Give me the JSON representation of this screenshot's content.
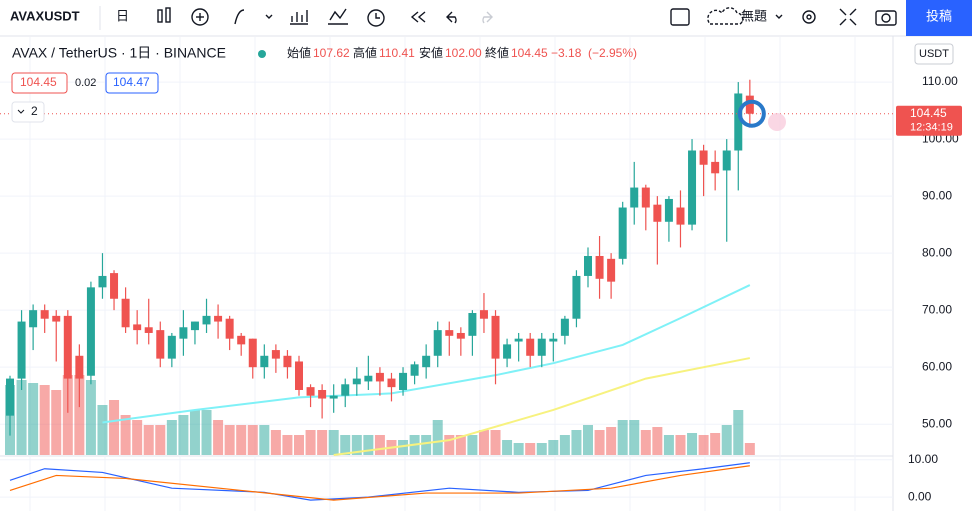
{
  "toolbar": {
    "symbol": "AVAXUSDT",
    "interval": "日",
    "layout_name": "無題",
    "publish": "投稿"
  },
  "chart_data": {
    "type": "candlestick",
    "title": "AVAX / TetherUS · 1日 · BINANCE",
    "legend": [
      {
        "name": "始値",
        "value": 107.62
      },
      {
        "name": "高値",
        "value": 110.41
      },
      {
        "name": "安値",
        "value": {
          "value": 102,
          "label": "102.00"
        }
      },
      {
        "name": "終値",
        "value": 104.45
      }
    ],
    "change": -3.18,
    "change_label": "−3.18",
    "change_pct": -2.95,
    "change_pct_label": "(−2.95%)",
    "currency": "USDT",
    "bid": 104.45,
    "spread": 0.02,
    "ask": 104.47,
    "indicator_count": 2,
    "last_price": 104.45,
    "countdown": "12:34:19",
    "up_color": "#26a69a",
    "down_color": "#ef5350",
    "ylim": [
      44.6,
      116.5
    ],
    "yticks": [
      {
        "value": 50,
        "label": "50.00"
      },
      {
        "value": 60,
        "label": "60.00"
      },
      {
        "value": 70,
        "label": "70.00"
      },
      {
        "value": 80,
        "label": "80.00"
      },
      {
        "value": 90,
        "label": "90.00"
      },
      {
        "value": 100,
        "label": "100.00"
      },
      {
        "value": 110,
        "label": "110.00"
      }
    ],
    "open": [
      51.5,
      58,
      67,
      70,
      69,
      69,
      62,
      58.5,
      74,
      76.5,
      72,
      67.5,
      67,
      66.5,
      61.5,
      65,
      66.5,
      67.5,
      69,
      68.5,
      65.5,
      65,
      60,
      63,
      62,
      61,
      56.5,
      56,
      54.5,
      55,
      57,
      57.5,
      59,
      58,
      56,
      58.5,
      60,
      62,
      66.5,
      66,
      65.5,
      70,
      69,
      61.5,
      64.5,
      65,
      62,
      64.5,
      65.5,
      68.5,
      76,
      79.5,
      79,
      79,
      88,
      91.5,
      88.5,
      85.5,
      88,
      85,
      98,
      96,
      94.5,
      98,
      107.62
    ],
    "high": [
      58.5,
      70,
      71,
      71,
      70,
      70,
      64,
      75,
      80,
      77,
      74,
      70,
      72,
      68,
      66,
      70,
      68,
      72,
      71,
      69,
      66,
      65,
      64,
      64,
      63,
      62,
      57,
      57,
      57,
      58,
      60,
      62,
      60,
      59,
      60,
      61,
      64,
      68,
      68,
      67,
      70,
      73,
      70,
      65,
      66,
      66,
      66,
      66,
      69,
      77,
      81,
      83,
      80,
      89,
      96,
      92,
      90,
      90,
      91,
      100,
      99,
      98,
      100,
      110,
      110.41
    ],
    "low": [
      48,
      56,
      63,
      66,
      61,
      52,
      53,
      57,
      72,
      70,
      66,
      64,
      64,
      60,
      60,
      62,
      64,
      66,
      65,
      63,
      62,
      58,
      58,
      59,
      58,
      55,
      53,
      51,
      52,
      53,
      55,
      56,
      55,
      54,
      55,
      57,
      58,
      60,
      62,
      62,
      62,
      66,
      57,
      60,
      61,
      60,
      60,
      61,
      64,
      67,
      74,
      72,
      72,
      78,
      85,
      84,
      78,
      82,
      81,
      84,
      90,
      91,
      82,
      91,
      102
    ],
    "close": [
      58,
      68,
      70,
      68.5,
      68,
      58,
      58,
      74,
      76,
      72,
      67,
      66.5,
      66,
      61.5,
      65.5,
      67,
      68,
      69,
      68,
      65,
      64,
      60,
      62,
      61.5,
      60,
      56,
      55,
      54.5,
      55,
      57,
      58,
      58.5,
      57.5,
      56.5,
      59,
      60.5,
      62,
      66.5,
      65.5,
      65,
      69.5,
      68.5,
      61.5,
      64,
      65,
      62,
      65,
      65,
      68.5,
      76,
      79.5,
      75.5,
      75,
      88,
      91.5,
      88,
      85.5,
      89.5,
      85,
      98,
      95.5,
      94,
      98,
      108,
      104.45
    ],
    "volume": [
      70,
      75,
      72,
      70,
      65,
      80,
      80,
      75,
      50,
      55,
      40,
      35,
      30,
      30,
      35,
      40,
      45,
      45,
      35,
      30,
      30,
      30,
      30,
      25,
      20,
      20,
      25,
      25,
      25,
      20,
      20,
      20,
      20,
      15,
      15,
      20,
      20,
      35,
      20,
      20,
      20,
      25,
      25,
      15,
      12,
      12,
      12,
      15,
      20,
      25,
      30,
      25,
      28,
      35,
      35,
      25,
      28,
      20,
      20,
      22,
      20,
      22,
      30,
      45,
      12
    ],
    "vlim": [
      0,
      100
    ],
    "ma": [
      {
        "color": "#7ff1f7",
        "index": [
          8,
          16,
          25,
          33,
          42,
          47,
          53,
          58,
          64
        ],
        "values": [
          50.3,
          52.5,
          54.7,
          55.4,
          58.6,
          60.7,
          63.9,
          68.6,
          74.4
        ]
      },
      {
        "color": "#f7f27f",
        "index": [
          28,
          38,
          47,
          55,
          64
        ],
        "values": [
          44.6,
          47.2,
          52.5,
          58,
          61.6
        ]
      }
    ],
    "macd": {
      "ylim": [
        -3.7,
        11
      ],
      "yticks": [
        {
          "value": 0,
          "label": "0.00"
        },
        {
          "value": 10,
          "label": "10.00"
        }
      ],
      "series": [
        {
          "color": "#2962ff",
          "index": [
            0,
            3,
            8,
            14,
            22,
            26,
            31,
            38,
            44,
            50,
            55,
            60,
            64
          ],
          "values": [
            4.5,
            7.6,
            6.6,
            2.4,
            1.3,
            -0.8,
            0,
            2.4,
            1.3,
            1.8,
            5.8,
            7.6,
            9.2
          ]
        },
        {
          "color": "#ff6d00",
          "index": [
            0,
            4,
            10,
            20,
            28,
            36,
            44,
            52,
            58,
            64
          ],
          "values": [
            1.8,
            5.8,
            5,
            1.8,
            -0.8,
            1.1,
            1.1,
            2.4,
            5.8,
            8.4
          ]
        }
      ]
    }
  }
}
